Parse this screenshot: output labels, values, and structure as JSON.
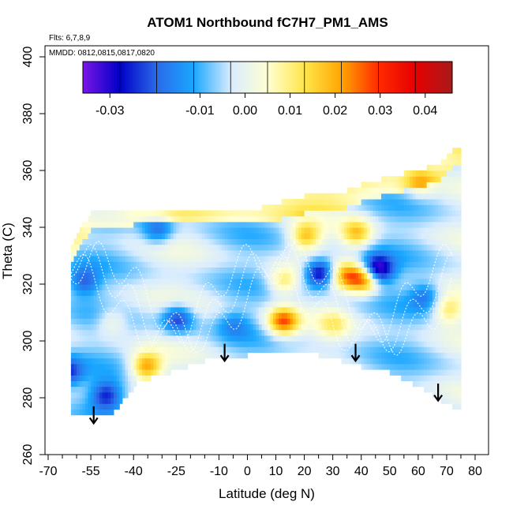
{
  "chart_data": {
    "type": "heatmap",
    "title": "ATOM1 Northbound fC7H7_PM1_AMS",
    "annotations": [
      "Flts: 6,7,8,9",
      "MMDD: 0812,0815,0817,0820"
    ],
    "xlabel": "Latitude (deg N)",
    "ylabel": "Theta (C)",
    "xlim": [
      -70,
      80
    ],
    "ylim": [
      260,
      400
    ],
    "x_ticks": [
      -70,
      -55,
      -40,
      -25,
      -10,
      0,
      10,
      20,
      30,
      40,
      50,
      60,
      70,
      80
    ],
    "y_ticks": [
      260,
      280,
      300,
      320,
      340,
      360,
      380,
      400
    ],
    "colorbar": {
      "range": [
        -0.036,
        0.046
      ],
      "tick_values": [
        -0.03,
        -0.01,
        0.0,
        0.01,
        0.02,
        0.03,
        0.04
      ],
      "tick_labels": [
        "-0.03",
        "-0.01",
        "0.00",
        "0.01",
        "0.02",
        "0.03",
        "0.04"
      ],
      "colors": [
        "#7a16e6",
        "#0000c8",
        "#2a6ae8",
        "#1aa7ff",
        "#d8ecff",
        "#ffffd2",
        "#ffe64a",
        "#ffa500",
        "#ff2a00",
        "#e60000",
        "#a81a1a"
      ]
    },
    "coverage_bottom": [
      [
        -62,
        276
      ],
      [
        -56,
        274
      ],
      [
        -47,
        276
      ],
      [
        -38,
        287
      ],
      [
        -27,
        290
      ],
      [
        -15,
        294
      ],
      [
        -5,
        295
      ],
      [
        5,
        297
      ],
      [
        10,
        298
      ],
      [
        20,
        297
      ],
      [
        30,
        295
      ],
      [
        40,
        292
      ],
      [
        50,
        290
      ],
      [
        60,
        285
      ],
      [
        70,
        279
      ],
      [
        75,
        276
      ]
    ],
    "coverage_top": [
      [
        -62,
        331
      ],
      [
        -58,
        340
      ],
      [
        -54,
        345
      ],
      [
        -40,
        346
      ],
      [
        -27,
        346
      ],
      [
        -15,
        346
      ],
      [
        -5,
        346
      ],
      [
        5,
        346
      ],
      [
        15,
        349
      ],
      [
        25,
        351
      ],
      [
        35,
        352
      ],
      [
        40,
        354
      ],
      [
        50,
        357
      ],
      [
        60,
        359
      ],
      [
        68,
        362
      ],
      [
        72,
        366
      ],
      [
        75,
        368
      ]
    ],
    "features": [
      {
        "lat": 25,
        "theta": 323,
        "value": -0.03
      },
      {
        "lat": 45,
        "theta": 324,
        "value": -0.035
      },
      {
        "lat": 12,
        "theta": 320,
        "value": 0.015
      },
      {
        "lat": 20,
        "theta": 336,
        "value": 0.02
      },
      {
        "lat": 34,
        "theta": 322,
        "value": 0.02
      },
      {
        "lat": 38,
        "theta": 337,
        "value": 0.02
      },
      {
        "lat": 41,
        "theta": 321,
        "value": 0.03
      },
      {
        "lat": 12,
        "theta": 306,
        "value": 0.03
      },
      {
        "lat": -36,
        "theta": 290,
        "value": 0.025
      },
      {
        "lat": -58,
        "theta": 320,
        "value": -0.015
      },
      {
        "lat": -50,
        "theta": 280,
        "value": -0.02
      },
      {
        "lat": -64,
        "theta": 288,
        "value": -0.02
      },
      {
        "lat": -25,
        "theta": 307,
        "value": -0.02
      },
      {
        "lat": -32,
        "theta": 338,
        "value": -0.015
      },
      {
        "lat": 62,
        "theta": 315,
        "value": -0.012
      },
      {
        "lat": 70,
        "theta": 310,
        "value": 0.015
      },
      {
        "lat": 60,
        "theta": 355,
        "value": 0.012
      },
      {
        "lat": -48,
        "theta": 306,
        "value": 0.01
      },
      {
        "lat": -5,
        "theta": 305,
        "value": -0.008
      },
      {
        "lat": 30,
        "theta": 305,
        "value": 0.01
      }
    ],
    "arrows": [
      {
        "lat": -54,
        "theta": 277
      },
      {
        "lat": -8,
        "theta": 299
      },
      {
        "lat": 38,
        "theta": 299
      },
      {
        "lat": 67,
        "theta": 285
      }
    ]
  }
}
